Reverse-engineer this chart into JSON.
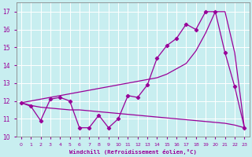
{
  "xlabel": "Windchill (Refroidissement éolien,°C)",
  "bg_color": "#c8eef0",
  "line_color": "#990099",
  "x": [
    0,
    1,
    2,
    3,
    4,
    5,
    6,
    7,
    8,
    9,
    10,
    11,
    12,
    13,
    14,
    15,
    16,
    17,
    18,
    19,
    20,
    21,
    22,
    23
  ],
  "y_zigzag": [
    11.9,
    11.7,
    10.9,
    12.1,
    12.2,
    12.0,
    10.5,
    10.5,
    11.2,
    10.5,
    11.0,
    12.3,
    12.2,
    12.9,
    14.4,
    15.1,
    15.5,
    16.3,
    16.0,
    17.0,
    17.0,
    14.7,
    12.8,
    10.5
  ],
  "y_straight": [
    11.9,
    12.0,
    12.1,
    12.2,
    12.3,
    12.4,
    12.5,
    12.6,
    12.7,
    12.8,
    12.9,
    13.0,
    13.1,
    13.2,
    13.3,
    13.5,
    13.8,
    14.1,
    14.8,
    15.8,
    17.0,
    17.0,
    14.7,
    10.5
  ],
  "y_flat": [
    11.9,
    11.75,
    11.65,
    11.6,
    11.55,
    11.5,
    11.5,
    11.45,
    11.4,
    11.35,
    11.3,
    11.25,
    11.2,
    11.15,
    11.1,
    11.05,
    11.0,
    10.95,
    10.9,
    10.85,
    10.8,
    10.75,
    10.65,
    10.5
  ],
  "ylim": [
    10,
    17.5
  ],
  "xlim": [
    -0.5,
    23.5
  ],
  "yticks": [
    10,
    11,
    12,
    13,
    14,
    15,
    16,
    17
  ],
  "xticks": [
    0,
    1,
    2,
    3,
    4,
    5,
    6,
    7,
    8,
    9,
    10,
    11,
    12,
    13,
    14,
    15,
    16,
    17,
    18,
    19,
    20,
    21,
    22,
    23
  ]
}
